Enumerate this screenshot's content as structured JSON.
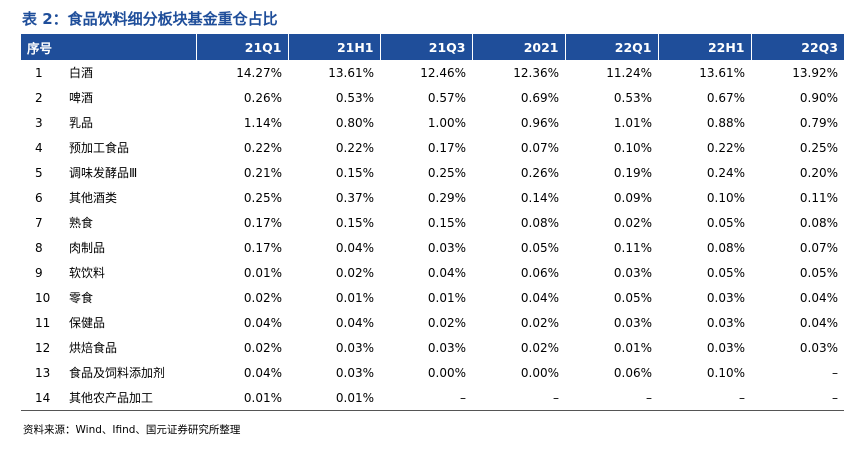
{
  "title": "表 2：食品饮料细分板块基金重仓占比",
  "header": {
    "index": "序号",
    "periods": [
      "21Q1",
      "21H1",
      "21Q3",
      "2021",
      "22Q1",
      "22H1",
      "22Q3"
    ]
  },
  "rows": [
    {
      "no": "1",
      "name": "白酒",
      "values": [
        "14.27%",
        "13.61%",
        "12.46%",
        "12.36%",
        "11.24%",
        "13.61%",
        "13.92%"
      ]
    },
    {
      "no": "2",
      "name": "啤酒",
      "values": [
        "0.26%",
        "0.53%",
        "0.57%",
        "0.69%",
        "0.53%",
        "0.67%",
        "0.90%"
      ]
    },
    {
      "no": "3",
      "name": "乳品",
      "values": [
        "1.14%",
        "0.80%",
        "1.00%",
        "0.96%",
        "1.01%",
        "0.88%",
        "0.79%"
      ]
    },
    {
      "no": "4",
      "name": "预加工食品",
      "values": [
        "0.22%",
        "0.22%",
        "0.17%",
        "0.07%",
        "0.10%",
        "0.22%",
        "0.25%"
      ]
    },
    {
      "no": "5",
      "name": "调味发酵品Ⅲ",
      "values": [
        "0.21%",
        "0.15%",
        "0.25%",
        "0.26%",
        "0.19%",
        "0.24%",
        "0.20%"
      ]
    },
    {
      "no": "6",
      "name": "其他酒类",
      "values": [
        "0.25%",
        "0.37%",
        "0.29%",
        "0.14%",
        "0.09%",
        "0.10%",
        "0.11%"
      ]
    },
    {
      "no": "7",
      "name": "熟食",
      "values": [
        "0.17%",
        "0.15%",
        "0.15%",
        "0.08%",
        "0.02%",
        "0.05%",
        "0.08%"
      ]
    },
    {
      "no": "8",
      "name": "肉制品",
      "values": [
        "0.17%",
        "0.04%",
        "0.03%",
        "0.05%",
        "0.11%",
        "0.08%",
        "0.07%"
      ]
    },
    {
      "no": "9",
      "name": "软饮料",
      "values": [
        "0.01%",
        "0.02%",
        "0.04%",
        "0.06%",
        "0.03%",
        "0.05%",
        "0.05%"
      ]
    },
    {
      "no": "10",
      "name": "零食",
      "values": [
        "0.02%",
        "0.01%",
        "0.01%",
        "0.04%",
        "0.05%",
        "0.03%",
        "0.04%"
      ]
    },
    {
      "no": "11",
      "name": "保健品",
      "values": [
        "0.04%",
        "0.04%",
        "0.02%",
        "0.02%",
        "0.03%",
        "0.03%",
        "0.04%"
      ]
    },
    {
      "no": "12",
      "name": "烘焙食品",
      "values": [
        "0.02%",
        "0.03%",
        "0.03%",
        "0.02%",
        "0.01%",
        "0.03%",
        "0.03%"
      ]
    },
    {
      "no": "13",
      "name": "食品及饲料添加剂",
      "values": [
        "0.04%",
        "0.03%",
        "0.00%",
        "0.00%",
        "0.06%",
        "0.10%",
        "–"
      ]
    },
    {
      "no": "14",
      "name": "其他农产品加工",
      "values": [
        "0.01%",
        "0.01%",
        "–",
        "–",
        "–",
        "–",
        "–"
      ]
    }
  ],
  "source": "资料来源：Wind、Ifind、国元证券研究所整理"
}
